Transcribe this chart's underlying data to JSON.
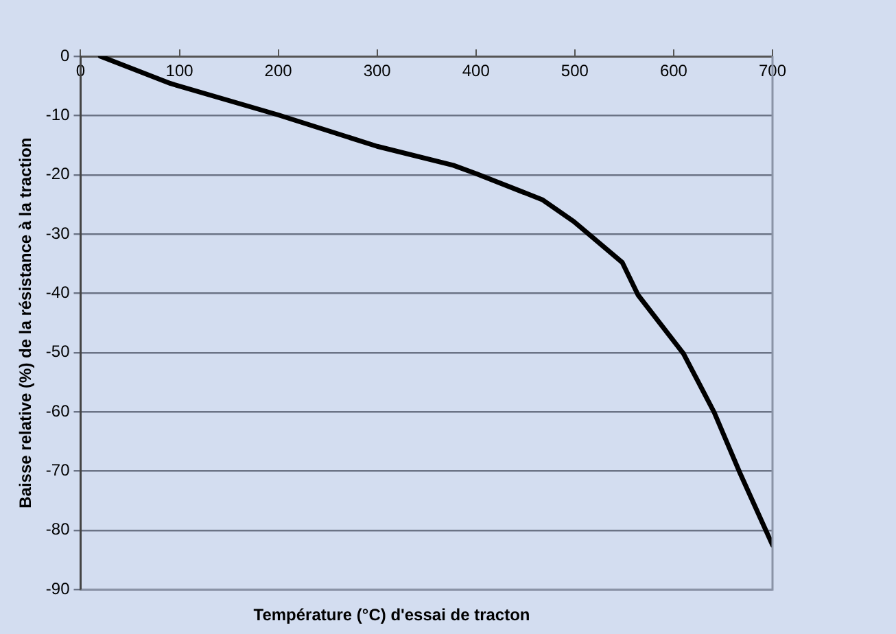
{
  "chart_data": {
    "type": "line",
    "xlabel": "Température (°C) d'essai de tracton",
    "ylabel": "Baisse relative (%) de la résistance à la traction",
    "x": [
      20,
      91,
      200,
      300,
      377,
      400,
      467,
      499,
      548,
      564,
      610,
      641,
      667,
      700
    ],
    "series": [
      {
        "color": "#000000",
        "values": [
          0,
          -4.6,
          -9.9,
          -15.2,
          -18.4,
          -19.8,
          -24.2,
          -27.9,
          -34.8,
          -40.3,
          -50.2,
          -60.1,
          -70.3,
          -82.5
        ]
      }
    ],
    "xlim": [
      0,
      700
    ],
    "xticks": [
      0,
      100,
      200,
      300,
      400,
      500,
      600,
      700
    ],
    "ylim": [
      -90,
      0
    ],
    "yticks": [
      -90,
      -80,
      -70,
      -60,
      -50,
      -40,
      -30,
      -20,
      -10,
      0
    ],
    "grid": "y",
    "legend": false,
    "marker": "none",
    "line_style": "solid"
  }
}
